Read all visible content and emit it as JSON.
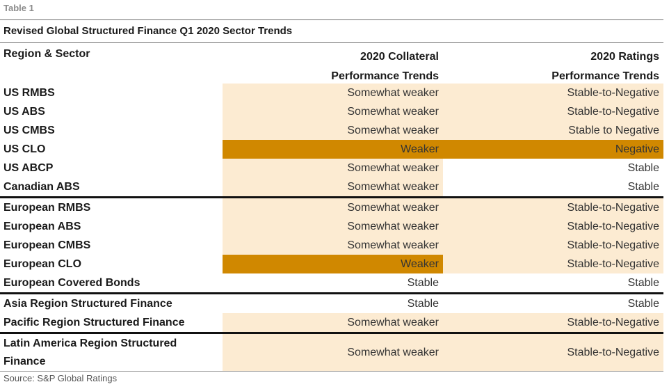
{
  "caption": "Table 1",
  "title": "Revised Global Structured Finance Q1 2020 Sector Trends",
  "headers": {
    "region": "Region & Sector",
    "collateral_line1": "2020 Collateral",
    "collateral_line2": "Performance Trends",
    "ratings_line1": "2020 Ratings",
    "ratings_line2": "Performance Trends"
  },
  "rows": [
    {
      "name": "US RMBS",
      "collateral": "Somewhat weaker",
      "ratings": "Stable-to-Negative"
    },
    {
      "name": "US ABS",
      "collateral": "Somewhat weaker",
      "ratings": "Stable-to-Negative"
    },
    {
      "name": "US CMBS",
      "collateral": "Somewhat weaker",
      "ratings": "Stable to Negative"
    },
    {
      "name": "US CLO",
      "collateral": "Weaker",
      "ratings": "Negative"
    },
    {
      "name": "US ABCP",
      "collateral": "Somewhat weaker",
      "ratings": "Stable"
    },
    {
      "name": "Canadian ABS",
      "collateral": "Somewhat weaker",
      "ratings": "Stable"
    },
    {
      "name": "European RMBS",
      "collateral": "Somewhat weaker",
      "ratings": "Stable-to-Negative"
    },
    {
      "name": "European ABS",
      "collateral": "Somewhat weaker",
      "ratings": "Stable-to-Negative"
    },
    {
      "name": "European CMBS",
      "collateral": "Somewhat weaker",
      "ratings": "Stable-to-Negative"
    },
    {
      "name": "European CLO",
      "collateral": "Weaker",
      "ratings": "Stable-to-Negative"
    },
    {
      "name": "European Covered Bonds",
      "collateral": "Stable",
      "ratings": "Stable"
    },
    {
      "name": "Asia Region Structured Finance",
      "collateral": "Stable",
      "ratings": "Stable"
    },
    {
      "name": "Pacific Region Structured Finance",
      "collateral": "Somewhat weaker",
      "ratings": "Stable-to-Negative"
    },
    {
      "name": "Latin America Region Structured Finance",
      "collateral": "Somewhat weaker",
      "ratings": "Stable-to-Negative"
    }
  ],
  "colors": {
    "light_orange": "#fcebd2",
    "dark_orange": "#d08800"
  },
  "source": "Source: S&P Global Ratings"
}
